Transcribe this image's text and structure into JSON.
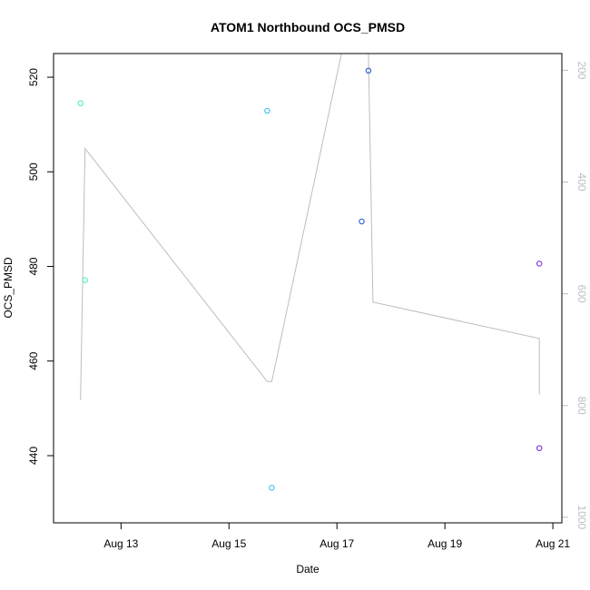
{
  "chart_data": {
    "type": "scatter",
    "title": "ATOM1 Northbound OCS_PMSD",
    "xlabel": "Date",
    "ylabel": "OCS_PMSD",
    "x_ticks": [
      {
        "date": "2023-08-13",
        "label": "Aug 13"
      },
      {
        "date": "2023-08-15",
        "label": "Aug 15"
      },
      {
        "date": "2023-08-17",
        "label": "Aug 17"
      },
      {
        "date": "2023-08-19",
        "label": "Aug 19"
      },
      {
        "date": "2023-08-21",
        "label": "Aug 21"
      }
    ],
    "xlim": [
      "2023-08-11 18:00",
      "2023-08-21 04:00"
    ],
    "ylim": [
      425.8,
      525
    ],
    "y_ticks": [
      440,
      460,
      480,
      500,
      520
    ],
    "series": [
      {
        "color": "#40f0b0",
        "points": [
          {
            "x": "2023-08-12 06:00",
            "y": 514.5
          },
          {
            "x": "2023-08-12 08:00",
            "y": 477.1
          }
        ]
      },
      {
        "color": "#30b8f0",
        "points": [
          {
            "x": "2023-08-15 17:00",
            "y": 512.9
          },
          {
            "x": "2023-08-15 19:00",
            "y": 433.2
          }
        ]
      },
      {
        "color": "#2050d8",
        "points": [
          {
            "x": "2023-08-17 11:00",
            "y": 489.5
          },
          {
            "x": "2023-08-17 14:00",
            "y": 521.4
          }
        ]
      },
      {
        "color": "#7020e0",
        "points": [
          {
            "x": "2023-08-20 18:00",
            "y": 480.6
          },
          {
            "x": "2023-08-20 18:00",
            "y": 441.6
          }
        ]
      }
    ],
    "secondary_axis": {
      "reversed": true,
      "ylim": [
        1010,
        170
      ],
      "ticks": [
        200,
        400,
        600,
        800,
        1000
      ],
      "color": "#bdbdbd",
      "line": [
        {
          "x": "2023-08-12 06:00",
          "y": 790
        },
        {
          "x": "2023-08-12 08:00",
          "y": 340
        },
        {
          "x": "2023-08-15 17:00",
          "y": 757
        },
        {
          "x": "2023-08-15 19:00",
          "y": 757
        },
        {
          "x": "2023-08-17 02:00",
          "y": 170
        },
        {
          "x": "2023-08-17 14:00",
          "y": 170
        },
        {
          "x": "2023-08-17 16:00",
          "y": 615
        },
        {
          "x": "2023-08-20 18:00",
          "y": 680
        },
        {
          "x": "2023-08-20 18:00",
          "y": 780
        }
      ]
    }
  }
}
